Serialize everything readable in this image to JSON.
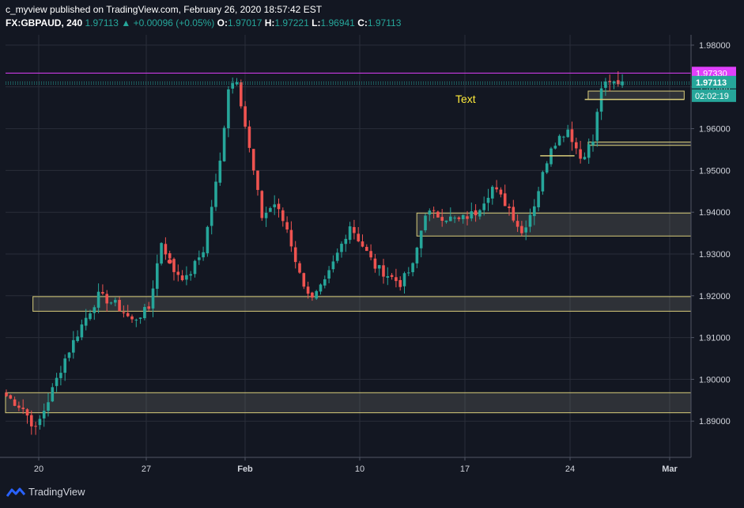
{
  "header": {
    "publisher": "c_myview",
    "published_text": "published on TradingView.com, February 26, 2020 18:57:42 EST",
    "symbol": "FX:GBPAUD, 240",
    "last": "1.97113",
    "change": "+0.00096 (+0.05%)",
    "open_label": "O:",
    "open": "1.97017",
    "high_label": "H:",
    "high": "1.97221",
    "low_label": "L:",
    "low": "1.96941",
    "close_label": "C:",
    "close": "1.97113"
  },
  "footer": {
    "logo_text": "TradingView"
  },
  "colors": {
    "background": "#131722",
    "grid": "#2a2e39",
    "up": "#26a69a",
    "down": "#ef5350",
    "magenta": "#e040fb",
    "zone_border": "#d8cc7a",
    "annotation": "#ffeb3b"
  },
  "chart_data": {
    "type": "candlestick",
    "symbol": "FX:GBPAUD",
    "interval": "240",
    "ylim": [
      1.8855,
      1.9815
    ],
    "y_ticks": [
      "1.98000",
      "1.97000",
      "1.96000",
      "1.95000",
      "1.94000",
      "1.93000",
      "1.92000",
      "1.91000",
      "1.90000",
      "1.89000"
    ],
    "x_ticks": [
      "20",
      "27",
      "Feb",
      "10",
      "17",
      "24",
      "Mar"
    ],
    "price_labels": {
      "magenta_line": "1.97330",
      "last_price": "1.97113",
      "countdown": "02:02:19"
    },
    "annotation_text": "Text",
    "zones": [
      {
        "x_start": 0.0,
        "x_end": 1.0,
        "top": 1.8968,
        "bottom": 1.892
      },
      {
        "x_start": 0.04,
        "x_end": 1.0,
        "top": 1.9198,
        "bottom": 1.9163
      },
      {
        "x_start": 0.6,
        "x_end": 1.0,
        "top": 1.9398,
        "bottom": 1.9343
      },
      {
        "x_start": 0.85,
        "x_end": 1.0,
        "top": 1.9568,
        "bottom": 1.956
      },
      {
        "x_start": 0.85,
        "x_end": 0.99,
        "top": 1.969,
        "bottom": 1.967
      }
    ],
    "horizontal_lines": [
      {
        "price": 1.9733,
        "style": "solid",
        "color": "magenta"
      },
      {
        "price": 1.97113,
        "style": "dotted",
        "color": "up"
      },
      {
        "price": 1.9707,
        "style": "dotted",
        "color": "up"
      }
    ],
    "short_lines": [
      {
        "price": 1.9535,
        "x_start": 0.78,
        "x_end": 0.83
      },
      {
        "price": 1.967,
        "x_start": 0.845,
        "x_end": 0.99
      }
    ],
    "marker": {
      "index": 39,
      "price": 1.9282,
      "color": "down"
    },
    "anchors": [
      [
        0,
        1.896
      ],
      [
        4,
        1.893
      ],
      [
        7,
        1.888
      ],
      [
        10,
        1.895
      ],
      [
        14,
        1.905
      ],
      [
        18,
        1.913
      ],
      [
        22,
        1.92
      ],
      [
        26,
        1.918
      ],
      [
        30,
        1.914
      ],
      [
        34,
        1.917
      ],
      [
        37,
        1.933
      ],
      [
        40,
        1.926
      ],
      [
        43,
        1.924
      ],
      [
        47,
        1.931
      ],
      [
        51,
        1.952
      ],
      [
        53,
        1.97
      ],
      [
        55,
        1.972
      ],
      [
        58,
        1.955
      ],
      [
        61,
        1.939
      ],
      [
        64,
        1.942
      ],
      [
        67,
        1.936
      ],
      [
        70,
        1.925
      ],
      [
        73,
        1.919
      ],
      [
        76,
        1.923
      ],
      [
        79,
        1.93
      ],
      [
        82,
        1.937
      ],
      [
        85,
        1.932
      ],
      [
        88,
        1.927
      ],
      [
        91,
        1.925
      ],
      [
        94,
        1.923
      ],
      [
        97,
        1.927
      ],
      [
        100,
        1.94
      ],
      [
        104,
        1.939
      ],
      [
        108,
        1.938
      ],
      [
        112,
        1.94
      ],
      [
        116,
        1.946
      ],
      [
        120,
        1.941
      ],
      [
        123,
        1.935
      ],
      [
        126,
        1.942
      ],
      [
        130,
        1.956
      ],
      [
        134,
        1.96
      ],
      [
        137,
        1.953
      ],
      [
        140,
        1.957
      ],
      [
        142,
        1.97
      ],
      [
        145,
        1.971
      ],
      [
        147,
        1.9713
      ]
    ],
    "bodies_per_candle_note": ""
  }
}
